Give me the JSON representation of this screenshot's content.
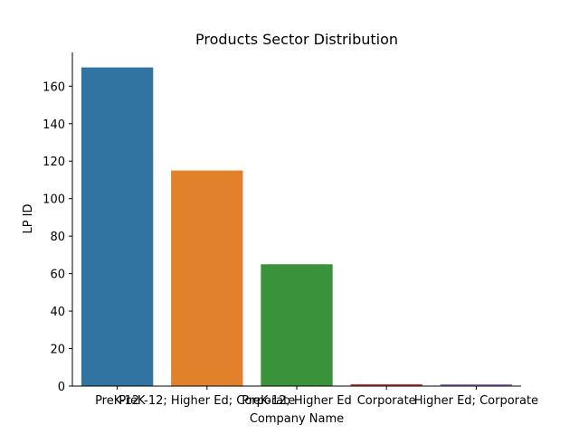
{
  "chart_data": {
    "type": "bar",
    "title": "Products Sector Distribution",
    "xlabel": "Company Name",
    "ylabel": "LP ID",
    "categories": [
      "PreK-12",
      "PreK-12; Higher Ed; Corporate",
      "PreK-12; Higher Ed",
      "Corporate",
      "Higher Ed; Corporate"
    ],
    "values": [
      170,
      115,
      65,
      1,
      1
    ],
    "colors": [
      "#3274a1",
      "#e1812c",
      "#3a923a",
      "#c03d3e",
      "#9372b2"
    ],
    "ylim": [
      0,
      178
    ],
    "yticks": [
      0,
      20,
      40,
      60,
      80,
      100,
      120,
      140,
      160
    ],
    "grid": false,
    "legend": "none"
  }
}
